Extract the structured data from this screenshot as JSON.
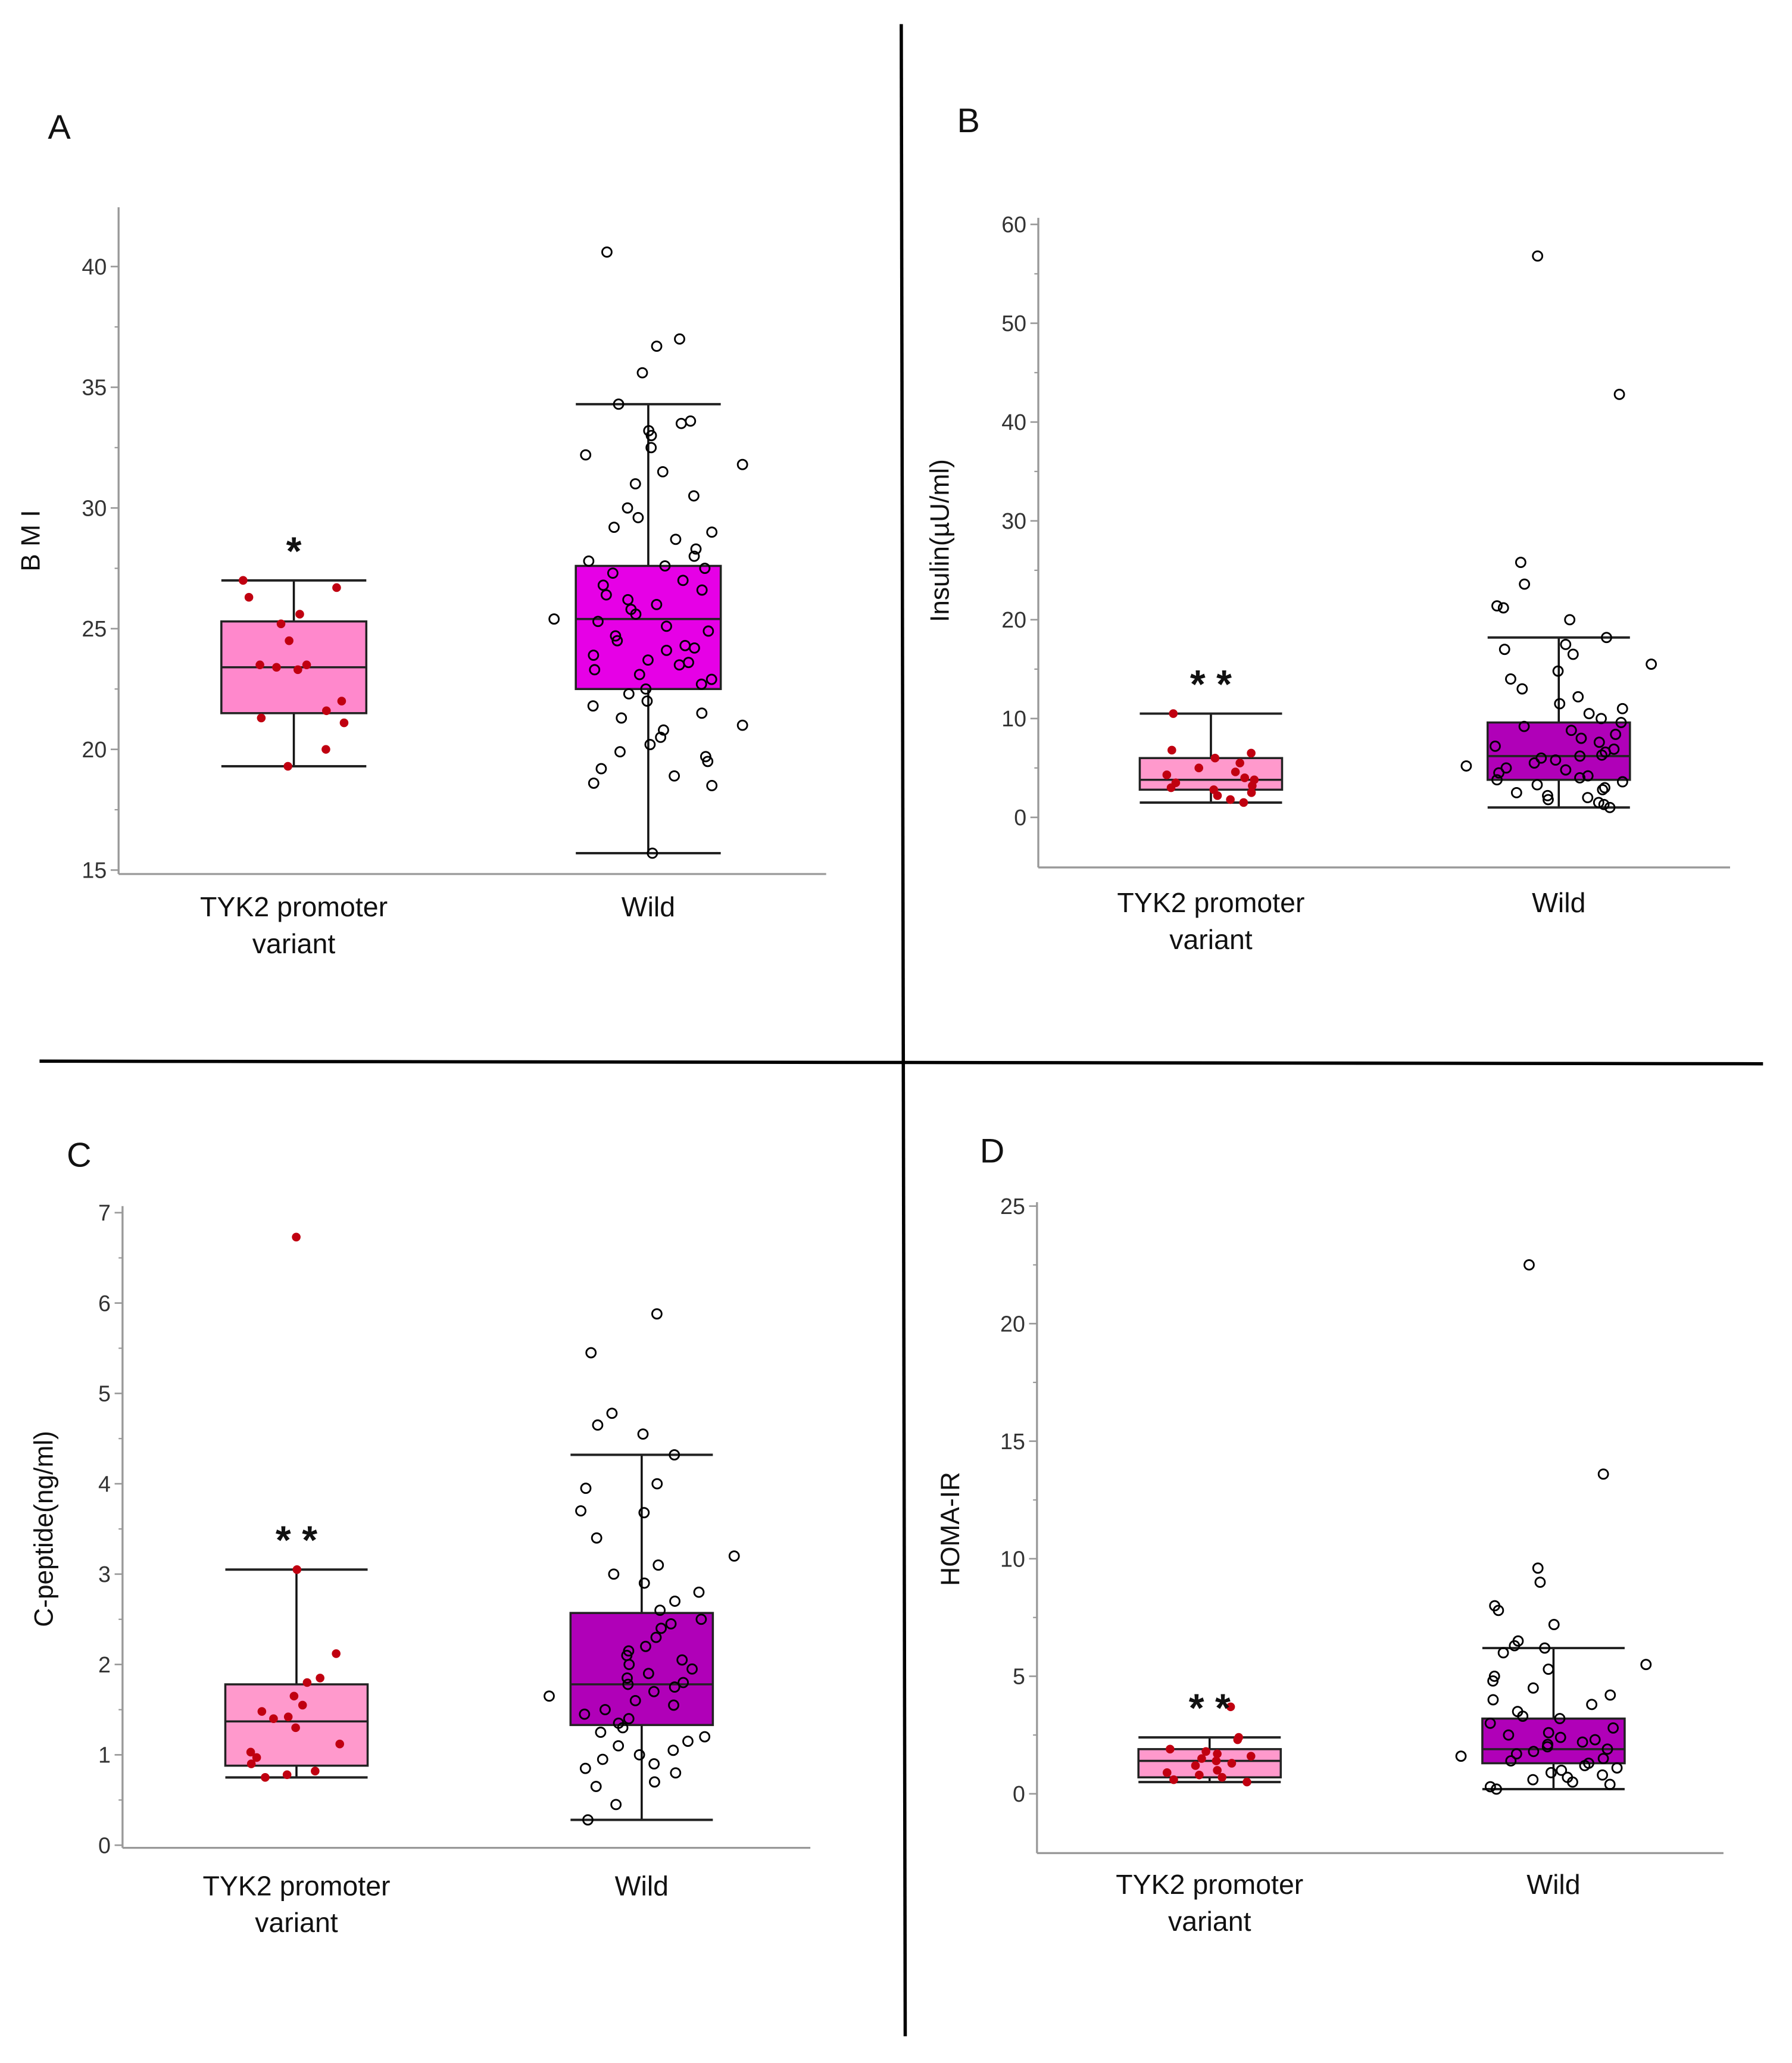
{
  "chart_data": [
    {
      "type": "box",
      "panel_label": "A",
      "ylabel": "B M I",
      "categories": [
        "TYK2 promoter variant",
        "Wild"
      ],
      "category_lines": [
        [
          "TYK2 promoter",
          "variant"
        ],
        [
          "Wild"
        ]
      ],
      "yticks": [
        "15",
        "20",
        "25",
        "30",
        "35",
        "40"
      ],
      "ylim": [
        15,
        42.5
      ],
      "significance": "*",
      "colors": {
        "variant_fill": "#ff88cc",
        "wild_fill": "#e600e6",
        "variant_points": "#c00010",
        "wild_points": "#000000"
      },
      "series": [
        {
          "name": "TYK2 promoter variant",
          "whisker_low": 19.3,
          "q1": 21.5,
          "median": 23.4,
          "q3": 25.3,
          "whisker_high": 27.0,
          "points": [
            27.0,
            26.7,
            26.3,
            25.6,
            25.2,
            24.5,
            23.5,
            23.5,
            23.4,
            23.3,
            22.0,
            21.6,
            21.3,
            21.1,
            20.0,
            19.3
          ]
        },
        {
          "name": "Wild",
          "whisker_low": 15.7,
          "q1": 22.5,
          "median": 25.4,
          "q3": 27.6,
          "whisker_high": 34.3,
          "points": [
            40.6,
            37.0,
            36.7,
            35.6,
            34.3,
            33.6,
            33.5,
            33.2,
            33.0,
            32.5,
            32.2,
            31.8,
            31.5,
            31.0,
            30.5,
            30.0,
            29.6,
            29.2,
            29.0,
            28.7,
            28.3,
            28.0,
            27.8,
            27.6,
            27.5,
            27.3,
            27.0,
            26.8,
            26.6,
            26.4,
            26.2,
            26.0,
            25.8,
            25.6,
            25.4,
            25.3,
            25.1,
            24.9,
            24.7,
            24.5,
            24.3,
            24.2,
            24.1,
            23.9,
            23.7,
            23.6,
            23.5,
            23.3,
            23.1,
            22.9,
            22.7,
            22.5,
            22.3,
            22.0,
            21.8,
            21.5,
            21.3,
            21.0,
            20.8,
            20.5,
            20.2,
            19.9,
            19.7,
            19.5,
            19.2,
            18.9,
            18.6,
            18.5,
            15.7
          ]
        }
      ]
    },
    {
      "type": "box",
      "panel_label": "B",
      "ylabel": "Insulin(µU/ml)",
      "categories": [
        "TYK2 promoter variant",
        "Wild"
      ],
      "category_lines": [
        [
          "TYK2 promoter",
          "variant"
        ],
        [
          "Wild"
        ]
      ],
      "yticks": [
        "0",
        "10",
        "20",
        "30",
        "40",
        "50",
        "60"
      ],
      "ylim": [
        -5,
        60
      ],
      "significance": "* *",
      "colors": {
        "variant_fill": "#ff99cc",
        "wild_fill": "#b000b8",
        "variant_points": "#c00010",
        "wild_points": "#000000"
      },
      "series": [
        {
          "name": "TYK2 promoter variant",
          "whisker_low": 1.5,
          "q1": 2.8,
          "median": 3.8,
          "q3": 6.0,
          "whisker_high": 10.5,
          "points": [
            10.5,
            6.8,
            6.5,
            6.0,
            5.5,
            5.0,
            4.6,
            4.3,
            4.0,
            3.8,
            3.5,
            3.2,
            3.0,
            2.8,
            2.5,
            2.2,
            1.8,
            1.5
          ]
        },
        {
          "name": "Wild",
          "whisker_low": 1.0,
          "q1": 3.8,
          "median": 6.2,
          "q3": 9.6,
          "whisker_high": 18.2,
          "points": [
            56.8,
            42.8,
            25.8,
            23.6,
            21.4,
            21.2,
            20.0,
            18.2,
            17.5,
            17.0,
            16.5,
            15.5,
            14.8,
            14.0,
            13.0,
            12.2,
            11.5,
            11.0,
            10.5,
            10.0,
            9.6,
            9.2,
            8.8,
            8.4,
            8.0,
            7.6,
            7.2,
            6.9,
            6.6,
            6.3,
            6.2,
            6.0,
            5.8,
            5.5,
            5.2,
            5.0,
            4.8,
            4.5,
            4.2,
            4.0,
            3.8,
            3.6,
            3.3,
            3.0,
            2.8,
            2.5,
            2.2,
            2.0,
            1.8,
            1.5,
            1.3,
            1.0
          ]
        }
      ]
    },
    {
      "type": "box",
      "panel_label": "C",
      "ylabel": "C-peptide(ng/ml)",
      "categories": [
        "TYK2 promoter variant",
        "Wild"
      ],
      "category_lines": [
        [
          "TYK2 promoter",
          "variant"
        ],
        [
          "Wild"
        ]
      ],
      "yticks": [
        "0",
        "1",
        "2",
        "3",
        "4",
        "5",
        "6",
        "7"
      ],
      "ylim": [
        0,
        7
      ],
      "significance": "* *",
      "colors": {
        "variant_fill": "#ff99cc",
        "wild_fill": "#b000b8",
        "variant_points": "#c00010",
        "wild_points": "#000000"
      },
      "series": [
        {
          "name": "TYK2 promoter variant",
          "whisker_low": 0.75,
          "q1": 0.88,
          "median": 1.37,
          "q3": 1.78,
          "whisker_high": 3.05,
          "points": [
            6.73,
            3.05,
            2.12,
            1.85,
            1.8,
            1.65,
            1.55,
            1.48,
            1.42,
            1.4,
            1.3,
            1.12,
            1.03,
            0.97,
            0.9,
            0.82,
            0.78,
            0.75
          ]
        },
        {
          "name": "Wild",
          "whisker_low": 0.28,
          "q1": 1.33,
          "median": 1.78,
          "q3": 2.57,
          "whisker_high": 4.32,
          "points": [
            5.88,
            5.45,
            4.78,
            4.65,
            4.55,
            4.32,
            4.0,
            3.95,
            3.7,
            3.68,
            3.4,
            3.2,
            3.1,
            3.0,
            2.9,
            2.8,
            2.7,
            2.6,
            2.5,
            2.45,
            2.4,
            2.3,
            2.2,
            2.15,
            2.1,
            2.05,
            2.0,
            1.95,
            1.9,
            1.85,
            1.8,
            1.78,
            1.75,
            1.7,
            1.65,
            1.6,
            1.55,
            1.5,
            1.45,
            1.4,
            1.35,
            1.3,
            1.25,
            1.2,
            1.15,
            1.1,
            1.05,
            1.0,
            0.95,
            0.9,
            0.85,
            0.8,
            0.7,
            0.65,
            0.45,
            0.28
          ]
        }
      ]
    },
    {
      "type": "box",
      "panel_label": "D",
      "ylabel": "HOMA-IR",
      "categories": [
        "TYK2 promoter variant",
        "Wild"
      ],
      "category_lines": [
        [
          "TYK2 promoter",
          "variant"
        ],
        [
          "Wild"
        ]
      ],
      "yticks": [
        "0",
        "5",
        "10",
        "15",
        "20",
        "25"
      ],
      "ylim": [
        -2.5,
        25
      ],
      "significance": "* *",
      "colors": {
        "variant_fill": "#ff99cc",
        "wild_fill": "#b000b8",
        "variant_points": "#c00010",
        "wild_points": "#000000"
      },
      "series": [
        {
          "name": "TYK2 promoter variant",
          "whisker_low": 0.5,
          "q1": 0.7,
          "median": 1.4,
          "q3": 1.9,
          "whisker_high": 2.4,
          "points": [
            3.7,
            2.4,
            2.3,
            1.9,
            1.8,
            1.7,
            1.6,
            1.5,
            1.4,
            1.3,
            1.2,
            1.0,
            0.9,
            0.8,
            0.7,
            0.6,
            0.5
          ]
        },
        {
          "name": "Wild",
          "whisker_low": 0.2,
          "q1": 1.3,
          "median": 1.9,
          "q3": 3.2,
          "whisker_high": 6.2,
          "points": [
            22.5,
            13.6,
            9.6,
            9.0,
            8.0,
            7.8,
            7.2,
            6.5,
            6.3,
            6.2,
            6.0,
            5.5,
            5.3,
            5.0,
            4.8,
            4.5,
            4.2,
            4.0,
            3.8,
            3.5,
            3.3,
            3.2,
            3.0,
            2.8,
            2.6,
            2.5,
            2.4,
            2.3,
            2.2,
            2.1,
            2.0,
            1.9,
            1.8,
            1.7,
            1.6,
            1.5,
            1.4,
            1.3,
            1.2,
            1.1,
            1.0,
            0.9,
            0.8,
            0.7,
            0.6,
            0.5,
            0.4,
            0.3,
            0.2
          ]
        }
      ]
    }
  ]
}
